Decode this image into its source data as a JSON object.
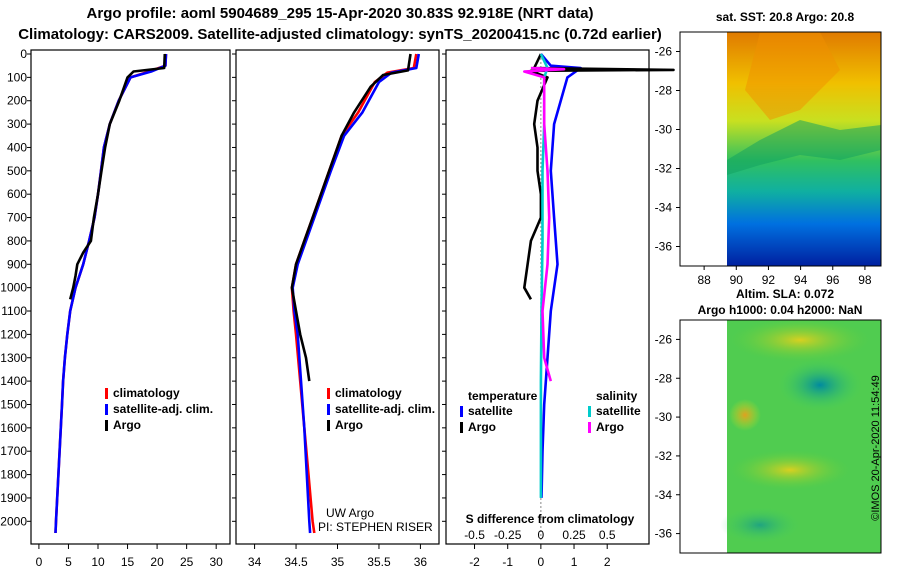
{
  "header": {
    "line1": "Argo profile: aoml 5904689_295 15-Apr-2020 30.83S 92.918E (NRT data)",
    "line2": "Climatology: CARS2009. Satellite-adjusted climatology: synTS_20200415.nc (0.72d earlier)"
  },
  "chart_data": [
    {
      "type": "line",
      "panel": "temperature",
      "ylim": [
        2080,
        0
      ],
      "xlim": [
        -1,
        32
      ],
      "yticks": [
        0,
        100,
        200,
        300,
        400,
        500,
        600,
        700,
        800,
        900,
        1000,
        1100,
        1200,
        1300,
        1400,
        1500,
        1600,
        1700,
        1800,
        1900,
        2000
      ],
      "xticks": [
        0,
        5,
        10,
        15,
        20,
        25,
        30
      ],
      "legend": [
        "climatology",
        "satellite-adj. clim.",
        "Argo"
      ],
      "series": [
        {
          "name": "climatology",
          "color": "#ff0000",
          "points": [
            [
              21.5,
              0
            ],
            [
              21.4,
              50
            ],
            [
              18,
              80
            ],
            [
              15.5,
              100
            ],
            [
              13.5,
              200
            ],
            [
              12,
              300
            ],
            [
              11,
              400
            ],
            [
              10.5,
              500
            ],
            [
              10,
              600
            ],
            [
              9.4,
              700
            ],
            [
              8.5,
              800
            ],
            [
              7.5,
              900
            ],
            [
              6.2,
              1000
            ],
            [
              5.3,
              1100
            ],
            [
              4.8,
              1200
            ],
            [
              4.4,
              1300
            ],
            [
              4.1,
              1400
            ],
            [
              3.9,
              1500
            ],
            [
              3.7,
              1600
            ],
            [
              3.5,
              1700
            ],
            [
              3.3,
              1800
            ],
            [
              3.1,
              1900
            ],
            [
              2.9,
              2000
            ],
            [
              2.8,
              2050
            ]
          ]
        },
        {
          "name": "satellite-adj. clim.",
          "color": "#0000ff",
          "points": [
            [
              21.5,
              0
            ],
            [
              21.4,
              50
            ],
            [
              19,
              75
            ],
            [
              15.5,
              100
            ],
            [
              13.5,
              200
            ],
            [
              12,
              300
            ],
            [
              11,
              400
            ],
            [
              10.5,
              500
            ],
            [
              10,
              600
            ],
            [
              9.4,
              700
            ],
            [
              8.5,
              800
            ],
            [
              7.5,
              900
            ],
            [
              6.2,
              1000
            ],
            [
              5.3,
              1100
            ],
            [
              4.8,
              1200
            ],
            [
              4.4,
              1300
            ],
            [
              4.1,
              1400
            ],
            [
              3.9,
              1500
            ],
            [
              3.7,
              1600
            ],
            [
              3.5,
              1700
            ],
            [
              3.3,
              1800
            ],
            [
              3.1,
              1900
            ],
            [
              2.9,
              2000
            ],
            [
              2.8,
              2050
            ]
          ]
        },
        {
          "name": "Argo",
          "color": "#000000",
          "points": [
            [
              21.3,
              0
            ],
            [
              21.2,
              60
            ],
            [
              16,
              75
            ],
            [
              15,
              100
            ],
            [
              13.6,
              200
            ],
            [
              12,
              300
            ],
            [
              11.2,
              400
            ],
            [
              10.6,
              500
            ],
            [
              10,
              600
            ],
            [
              9.3,
              700
            ],
            [
              8.8,
              800
            ],
            [
              7.5,
              850
            ],
            [
              6.5,
              900
            ],
            [
              6.2,
              950
            ],
            [
              5.8,
              1000
            ],
            [
              5.3,
              1050
            ]
          ]
        }
      ]
    },
    {
      "type": "line",
      "panel": "salinity",
      "ylim": [
        2080,
        0
      ],
      "xlim": [
        33.8,
        36.2
      ],
      "xticks": [
        34,
        34.5,
        35,
        35.5,
        36
      ],
      "xticklabels": [
        "34",
        "34.5",
        "35",
        "35.5",
        "36"
      ],
      "legend": [
        "climatology",
        "satellite-adj. clim.",
        "Argo"
      ],
      "series": [
        {
          "name": "climatology",
          "color": "#ff0000",
          "points": [
            [
              35.95,
              0
            ],
            [
              35.92,
              60
            ],
            [
              35.6,
              80
            ],
            [
              35.45,
              120
            ],
            [
              35.25,
              250
            ],
            [
              35.05,
              350
            ],
            [
              34.9,
              500
            ],
            [
              34.75,
              650
            ],
            [
              34.6,
              800
            ],
            [
              34.5,
              900
            ],
            [
              34.45,
              1000
            ],
            [
              34.47,
              1100
            ],
            [
              34.5,
              1200
            ],
            [
              34.55,
              1400
            ],
            [
              34.6,
              1600
            ],
            [
              34.65,
              1800
            ],
            [
              34.7,
              2000
            ],
            [
              34.72,
              2050
            ]
          ]
        },
        {
          "name": "satellite-adj. clim.",
          "color": "#0000ff",
          "points": [
            [
              35.98,
              0
            ],
            [
              35.95,
              60
            ],
            [
              35.65,
              80
            ],
            [
              35.5,
              120
            ],
            [
              35.3,
              250
            ],
            [
              35.08,
              350
            ],
            [
              34.92,
              500
            ],
            [
              34.77,
              650
            ],
            [
              34.62,
              800
            ],
            [
              34.52,
              900
            ],
            [
              34.46,
              1000
            ],
            [
              34.48,
              1100
            ],
            [
              34.52,
              1200
            ],
            [
              34.56,
              1400
            ],
            [
              34.6,
              1600
            ],
            [
              34.63,
              1800
            ],
            [
              34.66,
              2000
            ],
            [
              34.67,
              2050
            ]
          ]
        },
        {
          "name": "Argo",
          "color": "#000000",
          "points": [
            [
              35.88,
              0
            ],
            [
              35.85,
              70
            ],
            [
              35.55,
              90
            ],
            [
              35.4,
              140
            ],
            [
              35.2,
              250
            ],
            [
              35.05,
              350
            ],
            [
              34.9,
              500
            ],
            [
              34.75,
              650
            ],
            [
              34.6,
              800
            ],
            [
              34.5,
              900
            ],
            [
              34.45,
              1000
            ],
            [
              34.5,
              1100
            ],
            [
              34.55,
              1200
            ],
            [
              34.62,
              1300
            ],
            [
              34.66,
              1400
            ]
          ]
        }
      ],
      "annotations": [
        "UW Argo",
        "PI: STEPHEN RISER"
      ]
    },
    {
      "type": "line",
      "panel": "difference",
      "xlabel": "S difference from climatology",
      "ylim": [
        2080,
        0
      ],
      "xlim": [
        -2.8,
        3.2
      ],
      "xticks": [
        -2,
        -1,
        0,
        1,
        2
      ],
      "xticklabels": [
        "-2",
        "-1",
        "0",
        "1",
        "2"
      ],
      "sxticks": [
        -0.5,
        -0.25,
        0,
        0.25,
        0.5
      ],
      "sxticklabels": [
        "-0.5",
        "-0.25",
        "0",
        "0.25",
        "0.5"
      ],
      "legend_titles": [
        "temperature",
        "salinity"
      ],
      "legend": [
        "satellite",
        "Argo",
        "satellite",
        "Argo"
      ],
      "series": [
        {
          "name": "temperature satellite",
          "color": "#0000ff",
          "points": [
            [
              0,
              0
            ],
            [
              0.3,
              50
            ],
            [
              1.2,
              60
            ],
            [
              0.8,
              100
            ],
            [
              0.4,
              300
            ],
            [
              0.3,
              500
            ],
            [
              0.4,
              700
            ],
            [
              0.5,
              900
            ],
            [
              0.3,
              1100
            ],
            [
              0.2,
              1300
            ],
            [
              0.1,
              1500
            ],
            [
              0.05,
              1700
            ],
            [
              0.02,
              1900
            ]
          ]
        },
        {
          "name": "temperature Argo",
          "color": "#000000",
          "points": [
            [
              0,
              0
            ],
            [
              -0.2,
              60
            ],
            [
              4,
              68
            ],
            [
              -0.3,
              72
            ],
            [
              0.2,
              100
            ],
            [
              -0.1,
              200
            ],
            [
              -0.2,
              300
            ],
            [
              -0.1,
              400
            ],
            [
              -0.1,
              500
            ],
            [
              0,
              600
            ],
            [
              0,
              700
            ],
            [
              -0.3,
              800
            ],
            [
              -0.4,
              900
            ],
            [
              -0.5,
              1000
            ],
            [
              -0.3,
              1050
            ]
          ]
        },
        {
          "name": "salinity satellite",
          "color": "#00cccc",
          "points": [
            [
              0,
              0
            ],
            [
              0.2,
              60
            ],
            [
              0.1,
              100
            ],
            [
              0.1,
              300
            ],
            [
              0.05,
              500
            ],
            [
              0.05,
              800
            ],
            [
              0.02,
              1100
            ],
            [
              0,
              1400
            ],
            [
              0,
              1700
            ],
            [
              0,
              1900
            ]
          ]
        },
        {
          "name": "salinity Argo",
          "color": "#ff00ff",
          "points": [
            [
              -0.3,
              60
            ],
            [
              0.7,
              65
            ],
            [
              -0.5,
              75
            ],
            [
              0.1,
              100
            ],
            [
              0.1,
              300
            ],
            [
              0.2,
              500
            ],
            [
              0.25,
              700
            ],
            [
              0.2,
              900
            ],
            [
              0.05,
              1100
            ],
            [
              0.1,
              1300
            ],
            [
              0.3,
              1400
            ]
          ]
        }
      ]
    },
    {
      "type": "heatmap",
      "panel": "sst-map",
      "title": "sat. SST: 20.8 Argo: 20.8",
      "xlim": [
        86.5,
        99
      ],
      "ylim": [
        -37,
        -25
      ],
      "xticks": [
        88,
        90,
        92,
        94,
        96,
        98
      ],
      "yticks": [
        -26,
        -28,
        -30,
        -32,
        -34,
        -36
      ],
      "data_xmin": 90
    },
    {
      "type": "heatmap",
      "panel": "sla-map",
      "title": "Altim. SLA: 0.072",
      "subtitle": "Argo h1000: 0.04 h2000: NaN",
      "xlim": [
        86.5,
        99
      ],
      "ylim": [
        -37,
        -25
      ],
      "yticks": [
        -26,
        -28,
        -30,
        -32,
        -34,
        -36
      ],
      "data_xmin": 90
    }
  ],
  "credit": "©IMOS 20-Apr-2020 11:54:49"
}
